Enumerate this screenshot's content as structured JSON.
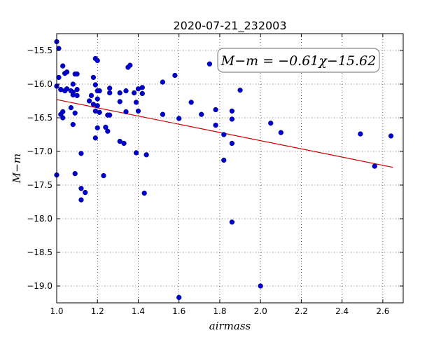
{
  "chart_data": {
    "type": "scatter",
    "title": "2020-07-21_232003",
    "xlabel": "airmass",
    "ylabel": "M−m",
    "xlim": [
      1.0,
      2.7
    ],
    "ylim": [
      -19.25,
      -15.25
    ],
    "y_inverted": true,
    "grid": true,
    "x_ticks": [
      "1.0",
      "1.2",
      "1.4",
      "1.6",
      "1.8",
      "2.0",
      "2.2",
      "2.4",
      "2.6"
    ],
    "y_ticks": [
      "−15.5",
      "−16.0",
      "−16.5",
      "−17.0",
      "−17.5",
      "−18.0",
      "−18.5",
      "−19.0"
    ],
    "annotation": "M−m = −0.61χ−15.62",
    "fit": {
      "slope": -0.61,
      "intercept": -15.62,
      "x_range": [
        1.0,
        2.65
      ],
      "color": "#cc0000"
    },
    "point_color": "#0000cc",
    "points": [
      [
        1.0,
        -15.37
      ],
      [
        1.01,
        -15.47
      ],
      [
        1.0,
        -16.03
      ],
      [
        1.01,
        -15.9
      ],
      [
        1.02,
        -16.08
      ],
      [
        1.03,
        -15.73
      ],
      [
        1.04,
        -15.84
      ],
      [
        1.05,
        -15.82
      ],
      [
        1.02,
        -16.08
      ],
      [
        1.04,
        -16.1
      ],
      [
        1.05,
        -16.07
      ],
      [
        1.07,
        -16.1
      ],
      [
        1.08,
        -16.12
      ],
      [
        1.09,
        -15.85
      ],
      [
        1.1,
        -15.85
      ],
      [
        1.08,
        -16.0
      ],
      [
        1.08,
        -16.16
      ],
      [
        1.1,
        -16.08
      ],
      [
        1.1,
        -16.17
      ],
      [
        1.07,
        -16.35
      ],
      [
        1.02,
        -16.45
      ],
      [
        1.03,
        -16.5
      ],
      [
        1.03,
        -16.41
      ],
      [
        1.09,
        -16.43
      ],
      [
        1.08,
        -16.6
      ],
      [
        1.0,
        -17.35
      ],
      [
        1.09,
        -17.33
      ],
      [
        1.12,
        -17.03
      ],
      [
        1.12,
        -17.55
      ],
      [
        1.14,
        -17.61
      ],
      [
        1.12,
        -17.72
      ],
      [
        1.16,
        -16.25
      ],
      [
        1.17,
        -16.17
      ],
      [
        1.18,
        -16.3
      ],
      [
        1.18,
        -15.9
      ],
      [
        1.19,
        -15.62
      ],
      [
        1.2,
        -15.65
      ],
      [
        1.19,
        -16.01
      ],
      [
        1.2,
        -16.1
      ],
      [
        1.21,
        -16.1
      ],
      [
        1.2,
        -16.22
      ],
      [
        1.2,
        -16.32
      ],
      [
        1.19,
        -16.4
      ],
      [
        1.21,
        -16.42
      ],
      [
        1.2,
        -16.65
      ],
      [
        1.19,
        -16.8
      ],
      [
        1.24,
        -16.64
      ],
      [
        1.25,
        -16.7
      ],
      [
        1.25,
        -16.46
      ],
      [
        1.26,
        -16.46
      ],
      [
        1.26,
        -16.06
      ],
      [
        1.26,
        -16.13
      ],
      [
        1.23,
        -17.36
      ],
      [
        1.31,
        -16.26
      ],
      [
        1.31,
        -16.13
      ],
      [
        1.31,
        -16.85
      ],
      [
        1.33,
        -16.88
      ],
      [
        1.34,
        -16.41
      ],
      [
        1.34,
        -16.1
      ],
      [
        1.35,
        -15.75
      ],
      [
        1.36,
        -15.72
      ],
      [
        1.38,
        -16.13
      ],
      [
        1.39,
        -16.27
      ],
      [
        1.4,
        -16.07
      ],
      [
        1.42,
        -16.05
      ],
      [
        1.42,
        -16.14
      ],
      [
        1.4,
        -16.4
      ],
      [
        1.39,
        -17.02
      ],
      [
        1.44,
        -17.05
      ],
      [
        1.43,
        -17.62
      ],
      [
        1.52,
        -15.97
      ],
      [
        1.52,
        -16.45
      ],
      [
        1.58,
        -15.87
      ],
      [
        1.6,
        -16.51
      ],
      [
        1.66,
        -16.27
      ],
      [
        1.6,
        -19.17
      ],
      [
        1.71,
        -16.45
      ],
      [
        1.75,
        -15.7
      ],
      [
        1.78,
        -16.38
      ],
      [
        1.78,
        -16.61
      ],
      [
        1.82,
        -16.75
      ],
      [
        1.82,
        -17.13
      ],
      [
        1.86,
        -16.4
      ],
      [
        1.86,
        -16.52
      ],
      [
        1.86,
        -16.88
      ],
      [
        1.86,
        -18.05
      ],
      [
        1.9,
        -16.09
      ],
      [
        2.0,
        -19.0
      ],
      [
        2.05,
        -16.58
      ],
      [
        2.1,
        -16.72
      ],
      [
        2.49,
        -16.74
      ],
      [
        2.56,
        -17.22
      ],
      [
        2.64,
        -16.77
      ]
    ]
  }
}
